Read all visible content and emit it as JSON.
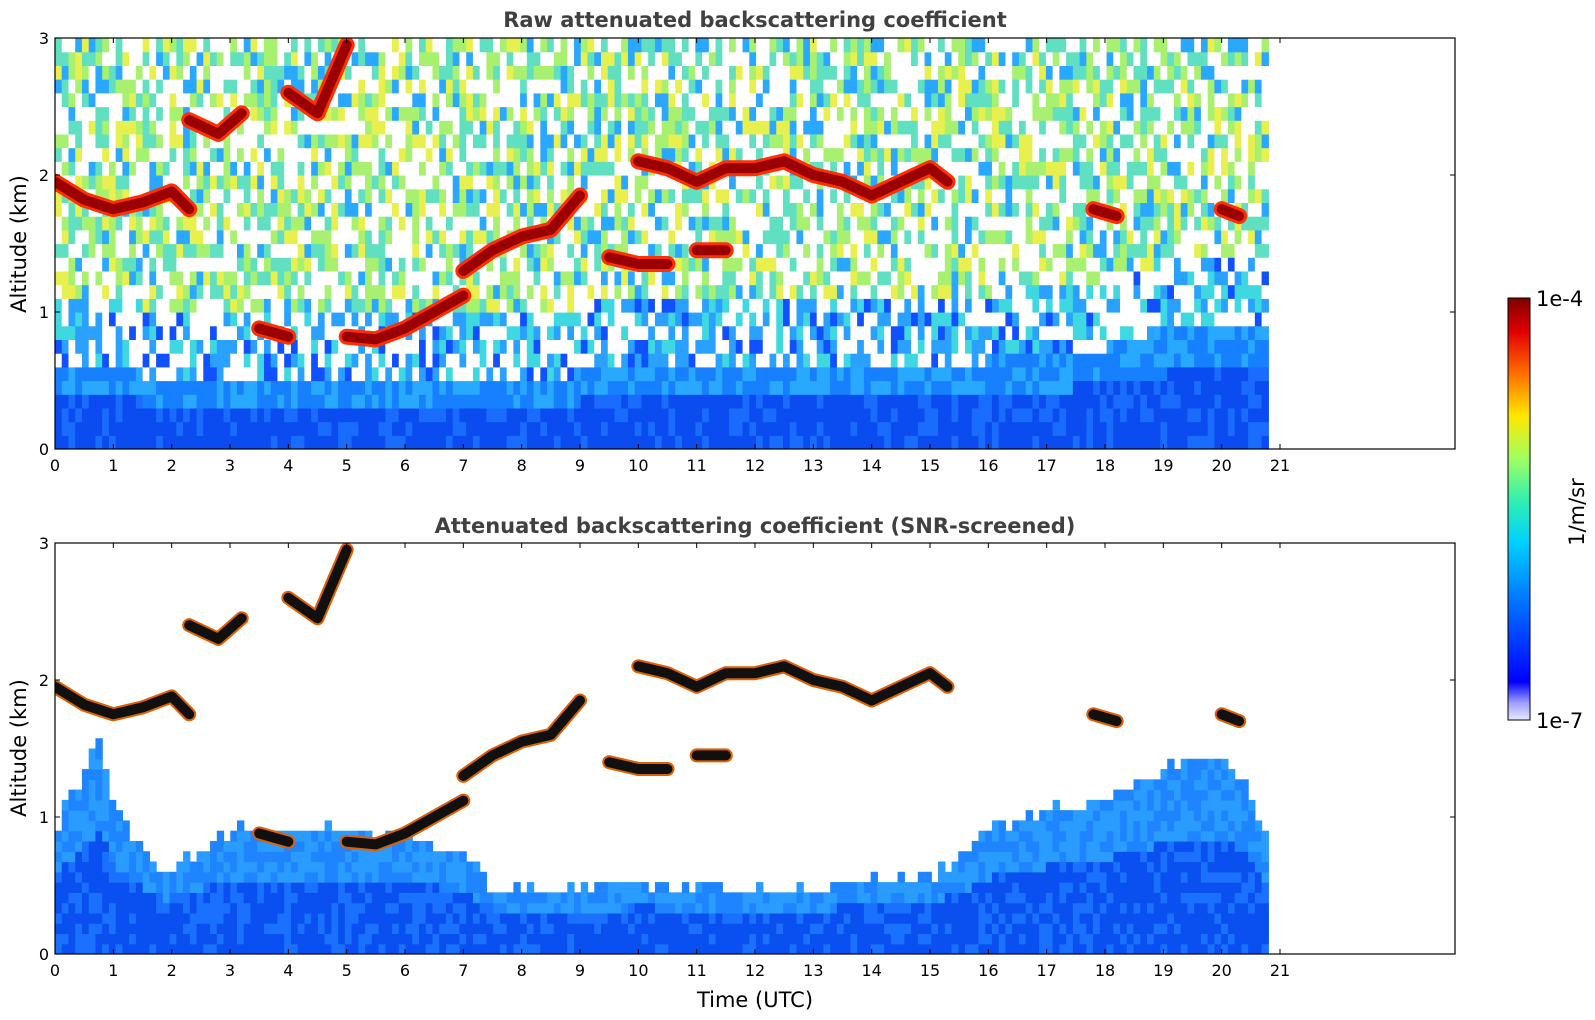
{
  "chart_data": [
    {
      "type": "heatmap",
      "title": "Raw attenuated backscattering coefficient",
      "xlabel": "",
      "ylabel": "Altitude (km)",
      "xlim": [
        0,
        24
      ],
      "ylim": [
        0,
        3
      ],
      "x_ticks": [
        "0",
        "1",
        "2",
        "3",
        "4",
        "5",
        "6",
        "7",
        "8",
        "9",
        "10",
        "11",
        "12",
        "13",
        "14",
        "15",
        "16",
        "17",
        "18",
        "19",
        "20",
        "21"
      ],
      "y_ticks": [
        "0",
        "1",
        "2",
        "3"
      ],
      "data_end_x": 20.8,
      "noise_onset_km": [
        [
          0,
          0.55
        ],
        [
          3,
          0.45
        ],
        [
          6,
          0.5
        ],
        [
          9,
          0.5
        ],
        [
          12,
          0.55
        ],
        [
          15,
          0.55
        ],
        [
          18,
          0.7
        ],
        [
          19.5,
          0.9
        ],
        [
          20.8,
          0.9
        ]
      ],
      "layers": [
        {
          "x": [
            0,
            0.5,
            1.0,
            1.5,
            2.0,
            2.3
          ],
          "y": [
            1.95,
            1.82,
            1.75,
            1.8,
            1.88,
            1.75
          ]
        },
        {
          "x": [
            2.3,
            2.8,
            3.2
          ],
          "y": [
            2.4,
            2.3,
            2.45
          ]
        },
        {
          "x": [
            4.0,
            4.5,
            5.0
          ],
          "y": [
            2.6,
            2.45,
            2.95
          ]
        },
        {
          "x": [
            3.5,
            4.0
          ],
          "y": [
            0.88,
            0.82
          ]
        },
        {
          "x": [
            5.0,
            5.5,
            6.0,
            6.5,
            7.0
          ],
          "y": [
            0.82,
            0.8,
            0.88,
            1.0,
            1.12
          ]
        },
        {
          "x": [
            7.0,
            7.5,
            8.0,
            8.5,
            9.0
          ],
          "y": [
            1.3,
            1.45,
            1.55,
            1.6,
            1.85
          ]
        },
        {
          "x": [
            10.0,
            10.5,
            11.0,
            11.5,
            12.0,
            12.5,
            13.0,
            13.5,
            14.0,
            14.5,
            15.0,
            15.3
          ],
          "y": [
            2.1,
            2.05,
            1.95,
            2.05,
            2.05,
            2.1,
            2.0,
            1.95,
            1.85,
            1.95,
            2.05,
            1.95
          ]
        },
        {
          "x": [
            9.5,
            10.0,
            10.5
          ],
          "y": [
            1.4,
            1.35,
            1.35
          ]
        },
        {
          "x": [
            11.0,
            11.5
          ],
          "y": [
            1.45,
            1.45
          ]
        },
        {
          "x": [
            17.8,
            18.2
          ],
          "y": [
            1.75,
            1.7
          ]
        },
        {
          "x": [
            20.0,
            20.3
          ],
          "y": [
            1.75,
            1.7
          ]
        }
      ]
    },
    {
      "type": "heatmap",
      "title": "Attenuated backscattering coefficient (SNR-screened)",
      "xlabel": "Time (UTC)",
      "ylabel": "Altitude (km)",
      "xlim": [
        0,
        24
      ],
      "ylim": [
        0,
        3
      ],
      "x_ticks": [
        "0",
        "1",
        "2",
        "3",
        "4",
        "5",
        "6",
        "7",
        "8",
        "9",
        "10",
        "11",
        "12",
        "13",
        "14",
        "15",
        "16",
        "17",
        "18",
        "19",
        "20",
        "21"
      ],
      "y_ticks": [
        "0",
        "1",
        "2",
        "3"
      ],
      "data_end_x": 20.8,
      "signal_top_km": [
        [
          0,
          1.0
        ],
        [
          0.7,
          1.6
        ],
        [
          1.0,
          1.05
        ],
        [
          1.8,
          0.65
        ],
        [
          3,
          0.95
        ],
        [
          5,
          0.95
        ],
        [
          6,
          0.9
        ],
        [
          7,
          0.75
        ],
        [
          7.5,
          0.5
        ],
        [
          10,
          0.55
        ],
        [
          12,
          0.5
        ],
        [
          15,
          0.6
        ],
        [
          16,
          0.95
        ],
        [
          17,
          1.1
        ],
        [
          18,
          1.2
        ],
        [
          19,
          1.4
        ],
        [
          20,
          1.5
        ],
        [
          20.3,
          1.3
        ],
        [
          20.8,
          0.8
        ]
      ]
    }
  ],
  "colorbar": {
    "label": "1/m/sr",
    "max_label": "1e-4",
    "min_label": "1e-7",
    "colormap": "jet",
    "stops": [
      "#e8e8ff",
      "#0000ff",
      "#00b0ff",
      "#30e8c0",
      "#a0ff60",
      "#ffe000",
      "#ff7000",
      "#e00000",
      "#800000"
    ]
  }
}
